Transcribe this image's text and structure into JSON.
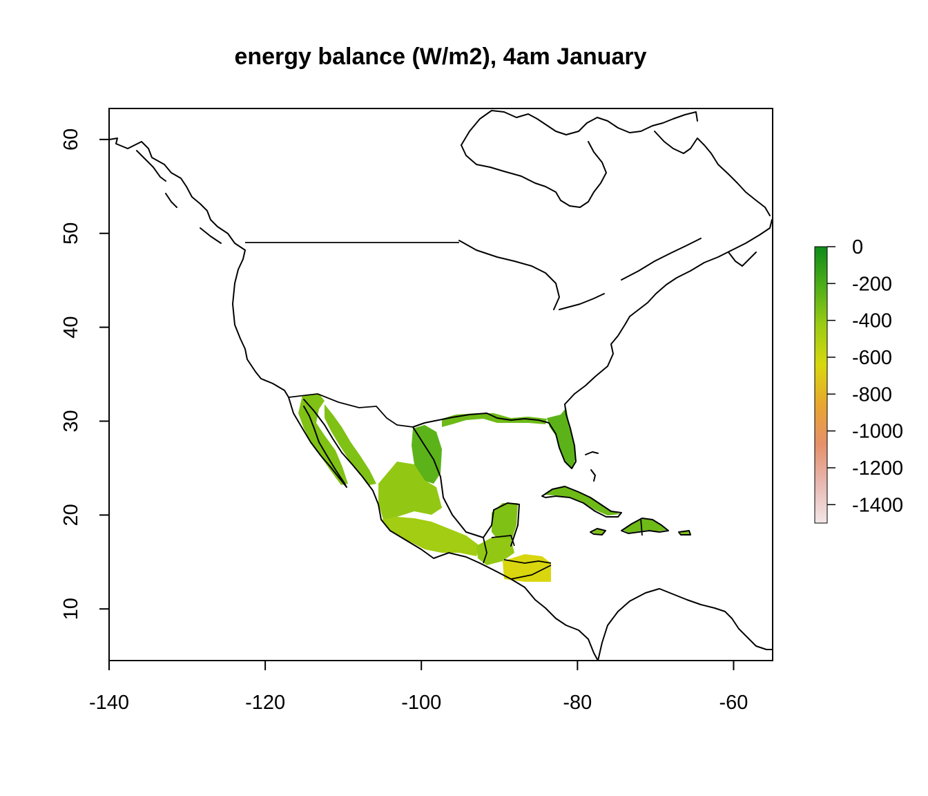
{
  "chart_data": {
    "type": "heatmap",
    "title": "energy balance (W/m2), 4am January",
    "xlabel": "",
    "ylabel": "",
    "xlim": [
      -140,
      -55
    ],
    "ylim": [
      4.5,
      63.3
    ],
    "x_ticks": [
      "-140",
      "-120",
      "-100",
      "-80",
      "-60"
    ],
    "x_tick_values": [
      -140,
      -120,
      -100,
      -80,
      -60
    ],
    "y_ticks": [
      "10",
      "20",
      "30",
      "40",
      "50",
      "60"
    ],
    "y_tick_values": [
      10,
      20,
      30,
      40,
      50,
      60
    ],
    "colorbar": {
      "labels": [
        "0",
        "-200",
        "-400",
        "-600",
        "-800",
        "-1000",
        "-1200",
        "-1400"
      ],
      "values": [
        0,
        -200,
        -400,
        -600,
        -800,
        -1000,
        -1200,
        -1400
      ],
      "range": [
        -1500,
        0
      ],
      "colors": [
        "#0f8a1a",
        "#4fae1a",
        "#9ccc12",
        "#d8d80e",
        "#e8a630",
        "#e5906a",
        "#e8b8b2",
        "#f2e6e6"
      ]
    },
    "regions": [
      {
        "name": "Florida peninsula",
        "approx_value": -250
      },
      {
        "name": "US Gulf coast",
        "approx_value": -300
      },
      {
        "name": "Baja California",
        "approx_value": -350
      },
      {
        "name": "Sonora / Sinaloa coast",
        "approx_value": -350
      },
      {
        "name": "Tamaulipas / Gulf of Mexico coast",
        "approx_value": -250
      },
      {
        "name": "Central Mexico",
        "approx_value": -400
      },
      {
        "name": "Southern Mexico Pacific coast",
        "approx_value": -450
      },
      {
        "name": "Yucatan",
        "approx_value": -350
      },
      {
        "name": "Guatemala / Belize",
        "approx_value": -400
      },
      {
        "name": "Honduras / El Salvador",
        "approx_value": -650
      },
      {
        "name": "Cuba",
        "approx_value": -300
      },
      {
        "name": "Jamaica",
        "approx_value": -350
      },
      {
        "name": "Hispaniola",
        "approx_value": -300
      },
      {
        "name": "Puerto Rico",
        "approx_value": -350
      }
    ]
  }
}
